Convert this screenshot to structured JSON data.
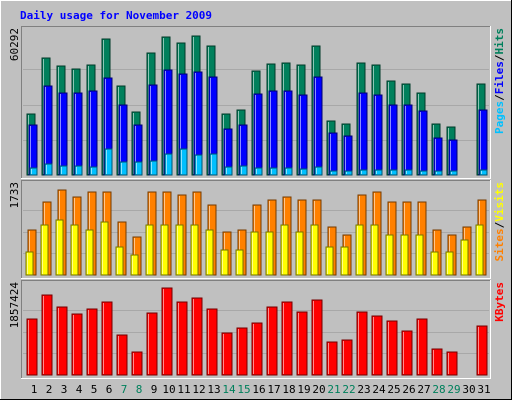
{
  "title": "Daily usage for November 2009",
  "colors": {
    "background": "#c0c0c0",
    "title": "#0000ff",
    "hits": "#00805c",
    "files": "#0000ff",
    "pages": "#00c0ff",
    "visits": "#ffff00",
    "sites": "#ff8000",
    "kbytes": "#ff0000",
    "weekday_label": "#000000",
    "weekend_label": "#00805c"
  },
  "chart_data": [
    {
      "type": "bar",
      "name": "hits-files-pages",
      "ymax_label": "60292",
      "ylim": [
        0,
        60292
      ],
      "legend": [
        {
          "label": "Hits",
          "color": "#00805c"
        },
        {
          "label": "/",
          "color": "#000000"
        },
        {
          "label": "Files",
          "color": "#0000ff"
        },
        {
          "label": "/",
          "color": "#000000"
        },
        {
          "label": "Pages",
          "color": "#00c0ff"
        }
      ],
      "categories": [
        "1",
        "2",
        "3",
        "4",
        "5",
        "6",
        "7",
        "8",
        "9",
        "10",
        "11",
        "12",
        "13",
        "14",
        "15",
        "16",
        "17",
        "18",
        "19",
        "20",
        "21",
        "22",
        "23",
        "24",
        "25",
        "26",
        "27",
        "28",
        "29",
        "30",
        "31"
      ],
      "weekend": [
        false,
        false,
        false,
        false,
        false,
        false,
        true,
        true,
        false,
        false,
        false,
        false,
        false,
        true,
        true,
        false,
        false,
        false,
        false,
        false,
        true,
        true,
        false,
        false,
        false,
        false,
        false,
        true,
        true,
        false,
        false
      ],
      "series": [
        {
          "name": "Hits",
          "values": [
            26000,
            50000,
            46500,
            45500,
            47000,
            58000,
            38000,
            27000,
            52000,
            59000,
            56500,
            59500,
            55000,
            26000,
            28000,
            44500,
            47500,
            48000,
            47000,
            55000,
            23000,
            22000,
            48000,
            47000,
            40000,
            39000,
            35000,
            22000,
            20500,
            0,
            39000
          ]
        },
        {
          "name": "Files",
          "values": [
            21500,
            38000,
            35000,
            35000,
            36000,
            41500,
            30000,
            21500,
            38500,
            45000,
            43000,
            44000,
            42000,
            19500,
            21500,
            34500,
            36000,
            36000,
            34000,
            42000,
            18000,
            16500,
            35000,
            34000,
            30000,
            30000,
            27500,
            16000,
            15000,
            0,
            28000
          ]
        },
        {
          "name": "Pages",
          "values": [
            3000,
            4500,
            4000,
            4000,
            3500,
            11000,
            5500,
            5500,
            6000,
            9000,
            11000,
            8500,
            9000,
            3500,
            4000,
            3000,
            3000,
            3000,
            2500,
            3500,
            1500,
            1500,
            2000,
            2000,
            2000,
            2000,
            1500,
            1500,
            1500,
            0,
            2000
          ]
        }
      ]
    },
    {
      "type": "bar",
      "name": "visits-sites",
      "ymax_label": "1733",
      "ylim": [
        0,
        1733
      ],
      "legend": [
        {
          "label": "Visits",
          "color": "#ffff00"
        },
        {
          "label": "/",
          "color": "#000000"
        },
        {
          "label": "Sites",
          "color": "#ff8000"
        }
      ],
      "categories": [
        "1",
        "2",
        "3",
        "4",
        "5",
        "6",
        "7",
        "8",
        "9",
        "10",
        "11",
        "12",
        "13",
        "14",
        "15",
        "16",
        "17",
        "18",
        "19",
        "20",
        "21",
        "22",
        "23",
        "24",
        "25",
        "26",
        "27",
        "28",
        "29",
        "30",
        "31"
      ],
      "series": [
        {
          "name": "Visits",
          "values": [
            450,
            1000,
            1100,
            1000,
            900,
            1050,
            550,
            400,
            1000,
            1000,
            1000,
            1000,
            900,
            500,
            500,
            850,
            850,
            1000,
            850,
            1000,
            550,
            550,
            1000,
            1000,
            800,
            800,
            800,
            450,
            450,
            700,
            1000
          ]
        },
        {
          "name": "Sites",
          "values": [
            900,
            1450,
            1700,
            1550,
            1650,
            1650,
            1050,
            750,
            1650,
            1650,
            1600,
            1650,
            1400,
            850,
            900,
            1400,
            1500,
            1550,
            1500,
            1500,
            950,
            800,
            1600,
            1650,
            1450,
            1450,
            1450,
            900,
            800,
            950,
            1500
          ]
        }
      ]
    },
    {
      "type": "bar",
      "name": "kbytes",
      "ymax_label": "1857424",
      "ylim": [
        0,
        1857424
      ],
      "legend": [
        {
          "label": "KBytes",
          "color": "#ff0000"
        }
      ],
      "categories": [
        "1",
        "2",
        "3",
        "4",
        "5",
        "6",
        "7",
        "8",
        "9",
        "10",
        "11",
        "12",
        "13",
        "14",
        "15",
        "16",
        "17",
        "18",
        "19",
        "20",
        "21",
        "22",
        "23",
        "24",
        "25",
        "26",
        "27",
        "28",
        "29",
        "30",
        "31"
      ],
      "series": [
        {
          "name": "KBytes",
          "values": [
            1200000,
            1700000,
            1450000,
            1300000,
            1400000,
            1550000,
            850000,
            500000,
            1320000,
            1857424,
            1550000,
            1650000,
            1400000,
            900000,
            1000000,
            1100000,
            1450000,
            1550000,
            1350000,
            1600000,
            700000,
            750000,
            1350000,
            1250000,
            1150000,
            950000,
            1200000,
            550000,
            500000,
            0,
            1050000
          ]
        }
      ]
    }
  ]
}
